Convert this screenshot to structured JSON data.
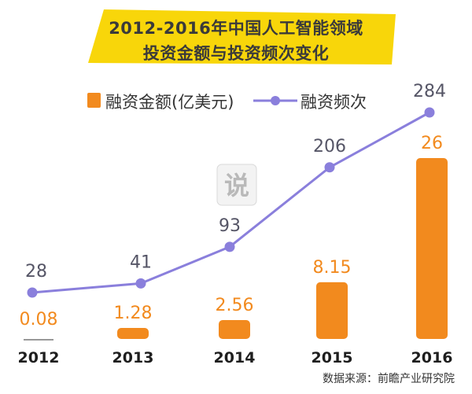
{
  "title": {
    "line1": "2012-2016年中国人工智能领域",
    "line2": "投资金额与投资频次变化"
  },
  "legend": {
    "bar_label": "融资金额(亿美元)",
    "line_label": "融资频次"
  },
  "source": "数据来源：前瞻产业研究院",
  "watermark_text": "说",
  "colors": {
    "banner": "#f8d60a",
    "bar": "#f28a1e",
    "line": "#8a7fdc",
    "text": "#333333"
  },
  "chart_data": {
    "type": "bar+line",
    "categories": [
      "2012",
      "2013",
      "2014",
      "2015",
      "2016"
    ],
    "series": [
      {
        "name": "融资金额(亿美元)",
        "type": "bar",
        "values": [
          0.08,
          1.28,
          2.56,
          8.15,
          26
        ],
        "labels": [
          "0.08",
          "1.28",
          "2.56",
          "8.15",
          "26"
        ]
      },
      {
        "name": "融资频次",
        "type": "line",
        "values": [
          28,
          41,
          93,
          206,
          284
        ],
        "labels": [
          "28",
          "41",
          "93",
          "206",
          "284"
        ]
      }
    ],
    "title": "2012-2016年中国人工智能领域投资金额与投资频次变化",
    "xlabel": "",
    "ylabel": "",
    "legend_position": "top"
  }
}
